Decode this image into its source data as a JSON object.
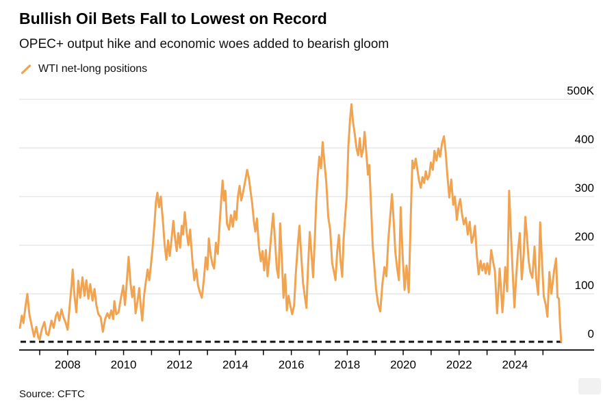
{
  "header": {
    "title": "Bullish Oil Bets Fall to Lowest on Record",
    "subtitle": "OPEC+ output hike and economic woes added to bearish gloom"
  },
  "legend": {
    "series_label": "WTI net-long positions"
  },
  "source": {
    "label": "Source: CFTC"
  },
  "chart_data": {
    "type": "line",
    "title": "Bullish Oil Bets Fall to Lowest on Record",
    "subtitle": "OPEC+ output hike and economic woes added to bearish gloom",
    "series_name": "WTI net-long positions",
    "source": "CFTC",
    "line_color": "#f0a350",
    "grid_color": "#dbdbdb",
    "axis_color": "#000000",
    "zero_line": {
      "style": "dashed",
      "color": "#111111",
      "value": 0
    },
    "legend_position": "top-left",
    "y_axis": {
      "side": "right",
      "unit": "thousands of contracts",
      "range": [
        0,
        500
      ],
      "ticks": [
        {
          "v": 0,
          "label": "0"
        },
        {
          "v": 100,
          "label": "100"
        },
        {
          "v": 200,
          "label": "200"
        },
        {
          "v": 300,
          "label": "300"
        },
        {
          "v": 400,
          "label": "400"
        },
        {
          "v": 500,
          "label": "500K"
        }
      ]
    },
    "x_axis": {
      "range": [
        2006.27,
        2025.75
      ],
      "tick_years": [
        2007,
        2008,
        2009,
        2010,
        2011,
        2012,
        2013,
        2014,
        2015,
        2016,
        2017,
        2018,
        2019,
        2020,
        2021,
        2022,
        2023,
        2024,
        2025
      ],
      "labeled_years": [
        2008,
        2010,
        2012,
        2014,
        2016,
        2018,
        2020,
        2022,
        2024
      ]
    },
    "points": [
      [
        2006.29,
        30
      ],
      [
        2006.36,
        55
      ],
      [
        2006.42,
        40
      ],
      [
        2006.5,
        78
      ],
      [
        2006.56,
        100
      ],
      [
        2006.63,
        58
      ],
      [
        2006.71,
        35
      ],
      [
        2006.8,
        12
      ],
      [
        2006.88,
        32
      ],
      [
        2006.95,
        10
      ],
      [
        2007.0,
        6
      ],
      [
        2007.08,
        28
      ],
      [
        2007.17,
        42
      ],
      [
        2007.24,
        18
      ],
      [
        2007.31,
        15
      ],
      [
        2007.42,
        45
      ],
      [
        2007.5,
        30
      ],
      [
        2007.58,
        55
      ],
      [
        2007.64,
        62
      ],
      [
        2007.7,
        45
      ],
      [
        2007.78,
        68
      ],
      [
        2007.85,
        52
      ],
      [
        2007.93,
        40
      ],
      [
        2008.0,
        26
      ],
      [
        2008.08,
        80
      ],
      [
        2008.14,
        118
      ],
      [
        2008.18,
        150
      ],
      [
        2008.24,
        98
      ],
      [
        2008.31,
        62
      ],
      [
        2008.38,
        127
      ],
      [
        2008.45,
        92
      ],
      [
        2008.53,
        134
      ],
      [
        2008.6,
        96
      ],
      [
        2008.67,
        128
      ],
      [
        2008.74,
        90
      ],
      [
        2008.81,
        120
      ],
      [
        2008.89,
        86
      ],
      [
        2008.96,
        110
      ],
      [
        2009.03,
        76
      ],
      [
        2009.1,
        58
      ],
      [
        2009.18,
        52
      ],
      [
        2009.26,
        22
      ],
      [
        2009.34,
        48
      ],
      [
        2009.42,
        60
      ],
      [
        2009.49,
        50
      ],
      [
        2009.56,
        66
      ],
      [
        2009.63,
        48
      ],
      [
        2009.67,
        85
      ],
      [
        2009.74,
        58
      ],
      [
        2009.82,
        62
      ],
      [
        2009.9,
        90
      ],
      [
        2009.99,
        117
      ],
      [
        2010.05,
        77
      ],
      [
        2010.11,
        120
      ],
      [
        2010.18,
        176
      ],
      [
        2010.25,
        120
      ],
      [
        2010.31,
        93
      ],
      [
        2010.37,
        115
      ],
      [
        2010.43,
        60
      ],
      [
        2010.5,
        85
      ],
      [
        2010.56,
        112
      ],
      [
        2010.62,
        70
      ],
      [
        2010.67,
        45
      ],
      [
        2010.73,
        95
      ],
      [
        2010.79,
        122
      ],
      [
        2010.86,
        150
      ],
      [
        2010.92,
        128
      ],
      [
        2010.98,
        160
      ],
      [
        2011.04,
        195
      ],
      [
        2011.1,
        240
      ],
      [
        2011.16,
        290
      ],
      [
        2011.21,
        308
      ],
      [
        2011.27,
        278
      ],
      [
        2011.33,
        300
      ],
      [
        2011.4,
        255
      ],
      [
        2011.47,
        200
      ],
      [
        2011.53,
        170
      ],
      [
        2011.59,
        210
      ],
      [
        2011.65,
        178
      ],
      [
        2011.72,
        215
      ],
      [
        2011.78,
        250
      ],
      [
        2011.84,
        215
      ],
      [
        2011.9,
        188
      ],
      [
        2011.96,
        225
      ],
      [
        2012.02,
        195
      ],
      [
        2012.08,
        240
      ],
      [
        2012.13,
        222
      ],
      [
        2012.19,
        268
      ],
      [
        2012.26,
        225
      ],
      [
        2012.32,
        200
      ],
      [
        2012.38,
        232
      ],
      [
        2012.46,
        170
      ],
      [
        2012.53,
        128
      ],
      [
        2012.6,
        150
      ],
      [
        2012.66,
        118
      ],
      [
        2012.73,
        103
      ],
      [
        2012.8,
        92
      ],
      [
        2012.87,
        128
      ],
      [
        2012.94,
        175
      ],
      [
        2013.0,
        150
      ],
      [
        2013.05,
        214
      ],
      [
        2013.12,
        178
      ],
      [
        2013.18,
        160
      ],
      [
        2013.24,
        152
      ],
      [
        2013.3,
        205
      ],
      [
        2013.37,
        182
      ],
      [
        2013.44,
        248
      ],
      [
        2013.5,
        300
      ],
      [
        2013.54,
        333
      ],
      [
        2013.59,
        292
      ],
      [
        2013.64,
        312
      ],
      [
        2013.7,
        244
      ],
      [
        2013.77,
        232
      ],
      [
        2013.84,
        262
      ],
      [
        2013.91,
        238
      ],
      [
        2013.97,
        270
      ],
      [
        2014.03,
        252
      ],
      [
        2014.09,
        300
      ],
      [
        2014.15,
        322
      ],
      [
        2014.21,
        292
      ],
      [
        2014.28,
        310
      ],
      [
        2014.35,
        332
      ],
      [
        2014.42,
        355
      ],
      [
        2014.48,
        338
      ],
      [
        2014.54,
        312
      ],
      [
        2014.6,
        285
      ],
      [
        2014.66,
        250
      ],
      [
        2014.71,
        228
      ],
      [
        2014.77,
        255
      ],
      [
        2014.84,
        196
      ],
      [
        2014.91,
        167
      ],
      [
        2014.97,
        188
      ],
      [
        2015.03,
        148
      ],
      [
        2015.09,
        190
      ],
      [
        2015.15,
        136
      ],
      [
        2015.21,
        172
      ],
      [
        2015.28,
        220
      ],
      [
        2015.35,
        265
      ],
      [
        2015.42,
        205
      ],
      [
        2015.48,
        152
      ],
      [
        2015.54,
        133
      ],
      [
        2015.6,
        245
      ],
      [
        2015.66,
        172
      ],
      [
        2015.72,
        92
      ],
      [
        2015.78,
        140
      ],
      [
        2015.84,
        66
      ],
      [
        2015.9,
        96
      ],
      [
        2015.97,
        74
      ],
      [
        2016.03,
        58
      ],
      [
        2016.1,
        76
      ],
      [
        2016.16,
        142
      ],
      [
        2016.23,
        198
      ],
      [
        2016.29,
        240
      ],
      [
        2016.36,
        172
      ],
      [
        2016.42,
        122
      ],
      [
        2016.48,
        95
      ],
      [
        2016.54,
        71
      ],
      [
        2016.6,
        160
      ],
      [
        2016.66,
        227
      ],
      [
        2016.72,
        182
      ],
      [
        2016.78,
        134
      ],
      [
        2016.84,
        215
      ],
      [
        2016.89,
        289
      ],
      [
        2016.94,
        338
      ],
      [
        2017.0,
        382
      ],
      [
        2017.06,
        358
      ],
      [
        2017.12,
        412
      ],
      [
        2017.18,
        372
      ],
      [
        2017.25,
        330
      ],
      [
        2017.32,
        258
      ],
      [
        2017.39,
        232
      ],
      [
        2017.46,
        163
      ],
      [
        2017.52,
        147
      ],
      [
        2017.58,
        128
      ],
      [
        2017.64,
        186
      ],
      [
        2017.7,
        221
      ],
      [
        2017.76,
        168
      ],
      [
        2017.82,
        135
      ],
      [
        2017.87,
        212
      ],
      [
        2017.93,
        262
      ],
      [
        2017.98,
        299
      ],
      [
        2018.04,
        404
      ],
      [
        2018.1,
        458
      ],
      [
        2018.15,
        490
      ],
      [
        2018.21,
        452
      ],
      [
        2018.27,
        428
      ],
      [
        2018.33,
        400
      ],
      [
        2018.39,
        385
      ],
      [
        2018.45,
        420
      ],
      [
        2018.51,
        382
      ],
      [
        2018.57,
        398
      ],
      [
        2018.62,
        433
      ],
      [
        2018.68,
        392
      ],
      [
        2018.74,
        345
      ],
      [
        2018.79,
        365
      ],
      [
        2018.85,
        282
      ],
      [
        2018.91,
        200
      ],
      [
        2018.97,
        155
      ],
      [
        2019.03,
        110
      ],
      [
        2019.1,
        80
      ],
      [
        2019.18,
        64
      ],
      [
        2019.26,
        122
      ],
      [
        2019.33,
        155
      ],
      [
        2019.4,
        136
      ],
      [
        2019.47,
        212
      ],
      [
        2019.54,
        262
      ],
      [
        2019.6,
        305
      ],
      [
        2019.66,
        250
      ],
      [
        2019.72,
        186
      ],
      [
        2019.79,
        150
      ],
      [
        2019.85,
        128
      ],
      [
        2019.91,
        278
      ],
      [
        2019.98,
        180
      ],
      [
        2020.05,
        108
      ],
      [
        2020.12,
        158
      ],
      [
        2020.2,
        103
      ],
      [
        2020.27,
        255
      ],
      [
        2020.33,
        374
      ],
      [
        2020.39,
        358
      ],
      [
        2020.45,
        378
      ],
      [
        2020.51,
        355
      ],
      [
        2020.57,
        332
      ],
      [
        2020.63,
        318
      ],
      [
        2020.69,
        340
      ],
      [
        2020.75,
        328
      ],
      [
        2020.81,
        352
      ],
      [
        2020.87,
        335
      ],
      [
        2020.93,
        342
      ],
      [
        2020.99,
        370
      ],
      [
        2021.06,
        355
      ],
      [
        2021.12,
        394
      ],
      [
        2021.19,
        374
      ],
      [
        2021.26,
        399
      ],
      [
        2021.32,
        382
      ],
      [
        2021.39,
        410
      ],
      [
        2021.46,
        424
      ],
      [
        2021.52,
        392
      ],
      [
        2021.58,
        344
      ],
      [
        2021.65,
        298
      ],
      [
        2021.72,
        335
      ],
      [
        2021.79,
        283
      ],
      [
        2021.85,
        300
      ],
      [
        2021.92,
        252
      ],
      [
        2021.98,
        280
      ],
      [
        2022.04,
        295
      ],
      [
        2022.11,
        262
      ],
      [
        2022.17,
        243
      ],
      [
        2022.24,
        256
      ],
      [
        2022.31,
        222
      ],
      [
        2022.38,
        248
      ],
      [
        2022.45,
        205
      ],
      [
        2022.51,
        218
      ],
      [
        2022.57,
        240
      ],
      [
        2022.63,
        182
      ],
      [
        2022.7,
        140
      ],
      [
        2022.77,
        168
      ],
      [
        2022.83,
        148
      ],
      [
        2022.89,
        162
      ],
      [
        2022.95,
        142
      ],
      [
        2023.01,
        163
      ],
      [
        2023.08,
        140
      ],
      [
        2023.15,
        190
      ],
      [
        2023.22,
        165
      ],
      [
        2023.28,
        148
      ],
      [
        2023.36,
        60
      ],
      [
        2023.45,
        152
      ],
      [
        2023.55,
        62
      ],
      [
        2023.65,
        155
      ],
      [
        2023.72,
        105
      ],
      [
        2023.79,
        312
      ],
      [
        2023.85,
        230
      ],
      [
        2023.91,
        152
      ],
      [
        2023.98,
        72
      ],
      [
        2024.05,
        142
      ],
      [
        2024.11,
        190
      ],
      [
        2024.17,
        225
      ],
      [
        2024.24,
        130
      ],
      [
        2024.31,
        180
      ],
      [
        2024.37,
        258
      ],
      [
        2024.43,
        215
      ],
      [
        2024.49,
        167
      ],
      [
        2024.55,
        145
      ],
      [
        2024.62,
        133
      ],
      [
        2024.7,
        197
      ],
      [
        2024.76,
        130
      ],
      [
        2024.83,
        98
      ],
      [
        2024.9,
        247
      ],
      [
        2024.97,
        160
      ],
      [
        2025.03,
        95
      ],
      [
        2025.1,
        77
      ],
      [
        2025.16,
        53
      ],
      [
        2025.23,
        145
      ],
      [
        2025.3,
        100
      ],
      [
        2025.4,
        148
      ],
      [
        2025.47,
        173
      ],
      [
        2025.52,
        93
      ],
      [
        2025.57,
        90
      ],
      [
        2025.61,
        40
      ],
      [
        2025.65,
        2
      ]
    ]
  }
}
